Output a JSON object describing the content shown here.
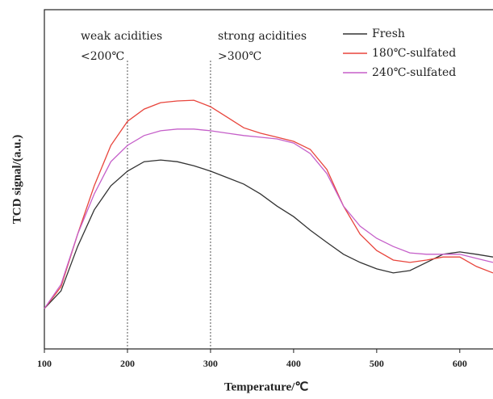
{
  "chart_data": {
    "type": "line",
    "x_label": "Temperature/℃",
    "y_label": "TCD signal/(a.u.)",
    "annotations": [
      "weak acidities",
      "<200℃",
      "strong acidities",
      ">300℃"
    ],
    "vlines": [
      200,
      300
    ],
    "x": [
      100,
      120,
      140,
      160,
      180,
      200,
      220,
      240,
      260,
      280,
      300,
      320,
      340,
      360,
      380,
      400,
      420,
      440,
      460,
      480,
      500,
      520,
      540,
      560,
      580,
      600,
      620,
      640
    ],
    "series": [
      {
        "name": "Fresh",
        "color": "#333333",
        "values": [
          11.9,
          17.1,
          30.2,
          41.0,
          48.1,
          52.4,
          55.2,
          55.7,
          55.2,
          54.0,
          52.4,
          50.5,
          48.6,
          45.7,
          42.1,
          39.0,
          35.0,
          31.4,
          27.9,
          25.5,
          23.6,
          22.4,
          23.1,
          25.5,
          27.9,
          28.6,
          27.9,
          27.1
        ]
      },
      {
        "name": "180℃-sulfated",
        "color": "#e8453c",
        "values": [
          11.9,
          18.3,
          33.8,
          48.1,
          60.0,
          67.1,
          70.7,
          72.6,
          73.1,
          73.3,
          71.4,
          68.3,
          65.2,
          63.6,
          62.4,
          61.2,
          58.8,
          52.9,
          42.1,
          33.8,
          29.0,
          26.2,
          25.5,
          26.2,
          27.1,
          27.1,
          24.3,
          22.4
        ]
      },
      {
        "name": "240℃-sulfated",
        "color": "#c55fc9",
        "values": [
          11.9,
          19.0,
          33.8,
          45.7,
          55.2,
          60.0,
          62.9,
          64.3,
          64.8,
          64.8,
          64.3,
          63.6,
          62.9,
          62.4,
          61.9,
          60.7,
          57.6,
          51.7,
          42.1,
          36.2,
          32.6,
          30.2,
          28.3,
          27.9,
          27.9,
          27.9,
          26.7,
          25.5
        ]
      }
    ],
    "xlim": [
      100,
      640
    ],
    "xticks": [
      100,
      200,
      300,
      400,
      500,
      600
    ],
    "ylim": [
      0,
      100
    ],
    "legend": "top-right"
  }
}
